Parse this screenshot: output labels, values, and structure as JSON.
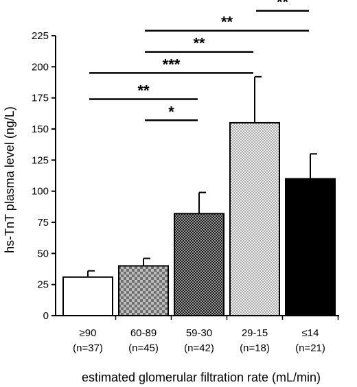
{
  "chart_data": {
    "type": "bar",
    "title": "",
    "xlabel": "estimated glomerular filtration rate (mL/min)",
    "ylabel": "hs-TnT plasma level (ng/L)",
    "ylim": [
      0,
      225
    ],
    "yticks": [
      0,
      25,
      50,
      75,
      100,
      125,
      150,
      175,
      200,
      225
    ],
    "categories": [
      {
        "label": "≥90",
        "n": "(n=37)"
      },
      {
        "label": "60-89",
        "n": "(n=45)"
      },
      {
        "label": "59-30",
        "n": "(n=42)"
      },
      {
        "label": "29-15",
        "n": "(n=18)"
      },
      {
        "label": "≤14",
        "n": "(n=21)"
      }
    ],
    "values": [
      31,
      40,
      82,
      155,
      110
    ],
    "errors": [
      5,
      6,
      17,
      37,
      20
    ],
    "bar_fills": [
      "white",
      "checker-coarse",
      "checker-dark",
      "checker-fine",
      "black"
    ],
    "grid": false,
    "significance": [
      {
        "from": 3,
        "to": 4,
        "label": "**",
        "y": 245
      },
      {
        "from": 1,
        "to": 4,
        "label": "**",
        "y": 229
      },
      {
        "from": 1,
        "to": 3,
        "label": "**",
        "y": 212
      },
      {
        "from": 0,
        "to": 3,
        "label": "***",
        "y": 195
      },
      {
        "from": 0,
        "to": 2,
        "label": "**",
        "y": 174
      },
      {
        "from": 1,
        "to": 2,
        "label": "*",
        "y": 157
      }
    ]
  }
}
